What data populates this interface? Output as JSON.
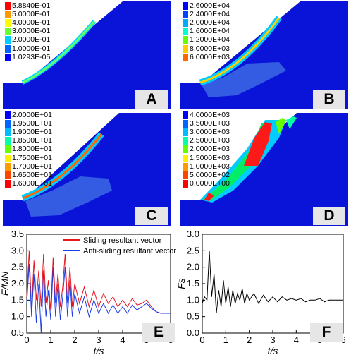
{
  "panels": {
    "A": {
      "label": "A",
      "legend": [
        "5.8840E-01",
        "5.0000E-01",
        "4.0000E-01",
        "3.0000E-01",
        "2.0000E-01",
        "1.0000E-01",
        "1.0293E-05"
      ],
      "legend_colors": [
        "#ff0000",
        "#ff9900",
        "#ffff00",
        "#66ff33",
        "#00ccff",
        "#0066ff",
        "#0000ff"
      ]
    },
    "B": {
      "label": "B",
      "legend": [
        "2.6000E+04",
        "2.4000E+04",
        "2.0000E+04",
        "1.6000E+04",
        "1.2000E+04",
        "8.0000E+03",
        "6.0000E+03"
      ],
      "legend_colors": [
        "#0000ff",
        "#0044ff",
        "#00aaff",
        "#00ffcc",
        "#66ff00",
        "#ffcc00",
        "#ff6600"
      ]
    },
    "C": {
      "label": "C",
      "legend": [
        "2.0000E+01",
        "1.9500E+01",
        "1.9000E+01",
        "1.8500E+01",
        "1.8000E+01",
        "1.7500E+01",
        "1.7000E+01",
        "1.6500E+01",
        "1.6000E+01"
      ],
      "legend_colors": [
        "#0000ff",
        "#0066ff",
        "#00bbff",
        "#00ffaa",
        "#66ff00",
        "#ffee00",
        "#ff9900",
        "#ff4400",
        "#ff0000"
      ]
    },
    "D": {
      "label": "D",
      "legend": [
        "4.0000E+03",
        "3.5000E+03",
        "3.0000E+03",
        "2.5000E+03",
        "2.0000E+03",
        "1.5000E+03",
        "1.0000E+03",
        "5.0000E+02",
        "0.0000E+00"
      ],
      "legend_colors": [
        "#0000ff",
        "#0066ff",
        "#00bbff",
        "#00ffaa",
        "#66ff00",
        "#ffee00",
        "#ff9900",
        "#ff4400",
        "#ff0000"
      ]
    }
  },
  "chart_E": {
    "label": "E",
    "ylabel": "F/MN",
    "xlabel": "t/s",
    "xticks": [
      "0",
      "1",
      "2",
      "3",
      "4",
      "5",
      "6"
    ],
    "yticks": [
      "0.5",
      "1.0",
      "1.5",
      "2.0",
      "2.5",
      "3.0",
      "3.5"
    ],
    "legend": [
      "Sliding resultant vector",
      "Anti-sliding resultant vector"
    ]
  },
  "chart_F": {
    "label": "F",
    "ylabel": "Fs",
    "xlabel": "t/s",
    "xticks": [
      "0",
      "1",
      "2",
      "3",
      "4",
      "5",
      "6"
    ],
    "yticks": [
      "0.0",
      "0.5",
      "1.0",
      "1.5",
      "2.0",
      "2.5",
      "3.0"
    ]
  },
  "chart_data": [
    {
      "type": "line",
      "title": "",
      "xlabel": "t/s",
      "ylabel": "F/MN",
      "xlim": [
        0,
        6
      ],
      "ylim": [
        0.5,
        3.5
      ],
      "series": [
        {
          "name": "Sliding resultant vector",
          "color": "#e8141e",
          "x": [
            0,
            0.1,
            0.2,
            0.3,
            0.4,
            0.5,
            0.6,
            0.7,
            0.8,
            0.9,
            1.0,
            1.1,
            1.2,
            1.3,
            1.4,
            1.5,
            1.6,
            1.7,
            1.8,
            1.9,
            2.0,
            2.2,
            2.4,
            2.6,
            2.8,
            3.0,
            3.2,
            3.4,
            3.6,
            3.8,
            4.0,
            4.2,
            4.4,
            4.6,
            4.8,
            5.0,
            5.2,
            5.4,
            5.6,
            5.8,
            6.0
          ],
          "y": [
            1.6,
            3.0,
            1.2,
            2.7,
            1.5,
            2.4,
            1.3,
            2.9,
            1.4,
            2.1,
            1.2,
            2.8,
            1.4,
            2.3,
            1.3,
            1.9,
            2.9,
            1.4,
            2.5,
            1.3,
            2.0,
            1.4,
            1.9,
            1.3,
            1.8,
            1.3,
            1.7,
            1.4,
            1.6,
            1.3,
            1.5,
            1.3,
            1.55,
            1.35,
            1.4,
            1.5,
            1.3,
            1.15,
            1.1,
            1.1,
            1.1
          ]
        },
        {
          "name": "Anti-sliding resultant vector",
          "color": "#1e3ee6",
          "x": [
            0,
            0.1,
            0.2,
            0.3,
            0.4,
            0.5,
            0.6,
            0.7,
            0.8,
            0.9,
            1.0,
            1.1,
            1.2,
            1.3,
            1.4,
            1.5,
            1.6,
            1.7,
            1.8,
            1.9,
            2.0,
            2.2,
            2.4,
            2.6,
            2.8,
            3.0,
            3.2,
            3.4,
            3.6,
            3.8,
            4.0,
            4.2,
            4.4,
            4.6,
            4.8,
            5.0,
            5.2,
            5.4,
            5.6,
            5.8,
            6.0
          ],
          "y": [
            1.4,
            2.6,
            1.0,
            2.3,
            0.8,
            2.0,
            0.5,
            2.4,
            1.0,
            1.8,
            0.9,
            2.5,
            1.0,
            2.0,
            0.9,
            1.6,
            2.5,
            1.0,
            2.1,
            1.0,
            1.7,
            1.1,
            1.6,
            1.0,
            1.5,
            1.1,
            1.4,
            1.1,
            1.35,
            1.1,
            1.3,
            1.1,
            1.35,
            1.2,
            1.3,
            1.4,
            1.25,
            1.15,
            1.1,
            1.1,
            1.1
          ]
        }
      ]
    },
    {
      "type": "line",
      "title": "",
      "xlabel": "t/s",
      "ylabel": "Fs",
      "xlim": [
        0,
        6
      ],
      "ylim": [
        0,
        3
      ],
      "series": [
        {
          "name": "",
          "color": "#000000",
          "x": [
            0,
            0.1,
            0.2,
            0.3,
            0.4,
            0.5,
            0.6,
            0.7,
            0.8,
            0.9,
            1.0,
            1.1,
            1.2,
            1.3,
            1.4,
            1.5,
            1.6,
            1.7,
            1.8,
            1.9,
            2.0,
            2.2,
            2.4,
            2.6,
            2.8,
            3.0,
            3.2,
            3.4,
            3.6,
            3.8,
            4.0,
            4.2,
            4.4,
            4.6,
            4.8,
            5.0,
            5.2,
            5.4,
            5.6,
            5.8,
            6.0
          ],
          "y": [
            0.9,
            1.1,
            1.0,
            2.5,
            1.1,
            1.8,
            0.6,
            1.3,
            0.8,
            1.6,
            0.9,
            1.4,
            0.8,
            1.3,
            0.9,
            1.2,
            1.0,
            1.35,
            0.9,
            1.2,
            1.0,
            1.2,
            0.9,
            1.15,
            0.95,
            1.1,
            0.95,
            1.1,
            1.0,
            1.05,
            1.0,
            1.05,
            0.95,
            1.0,
            1.0,
            1.05,
            0.95,
            1.0,
            1.0,
            1.0,
            1.0
          ]
        }
      ]
    }
  ]
}
